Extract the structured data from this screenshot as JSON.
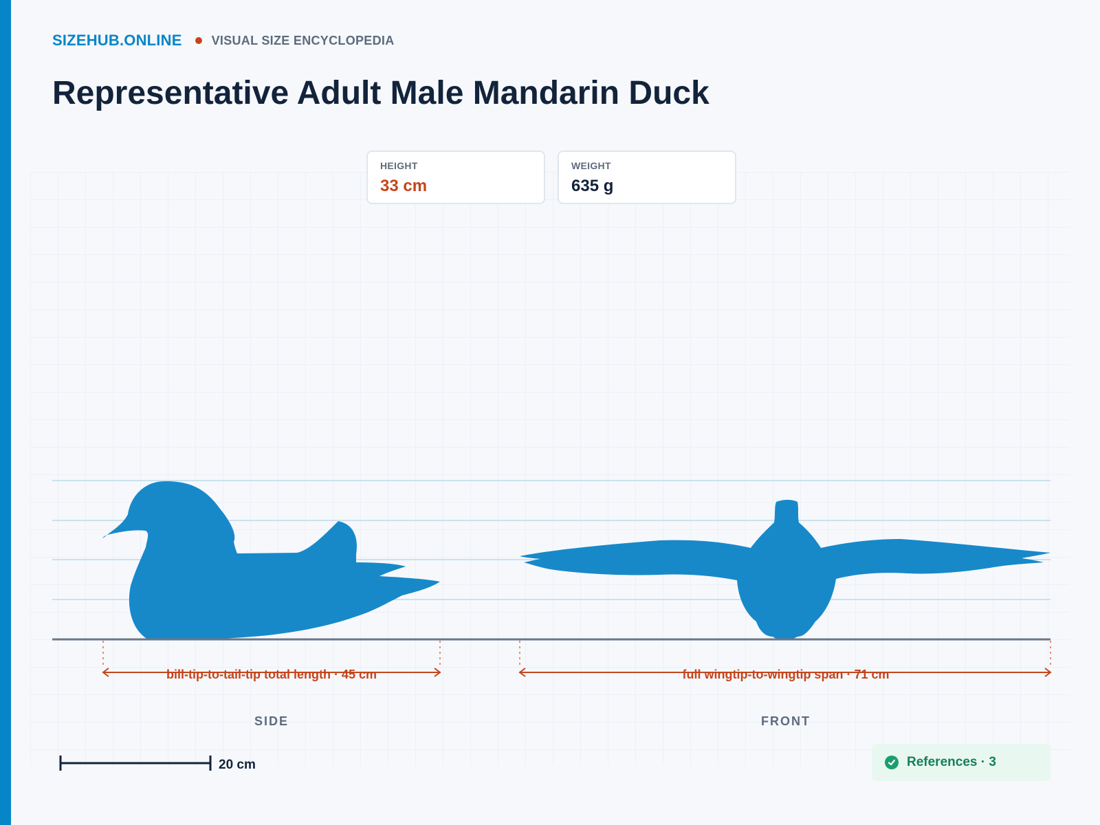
{
  "header": {
    "brand": "SIZEHUB.ONLINE",
    "tagline": "VISUAL SIZE ENCYCLOPEDIA",
    "title": "Representative Adult Male Mandarin Duck"
  },
  "stats": [
    {
      "label": "HEIGHT",
      "value": "33 cm",
      "color": "#c4451c"
    },
    {
      "label": "WEIGHT",
      "value": "635 g",
      "color": "#12233a"
    }
  ],
  "measurements": {
    "length": {
      "label": "bill-tip-to-tail-tip total length · 45 cm",
      "value_cm": 45
    },
    "wingspan": {
      "label": "full wingtip-to-wingtip span · 71 cm",
      "value_cm": 71
    }
  },
  "views": {
    "side": "SIDE",
    "front": "FRONT"
  },
  "scale_bar": {
    "label": "20 cm",
    "value_cm": 20
  },
  "references": {
    "label": "References · 3",
    "icon": "check-circle-icon"
  },
  "colors": {
    "accent": "#0786c7",
    "silhouette": "#1789c9",
    "measure": "#c4451c",
    "success": "#13805a"
  }
}
